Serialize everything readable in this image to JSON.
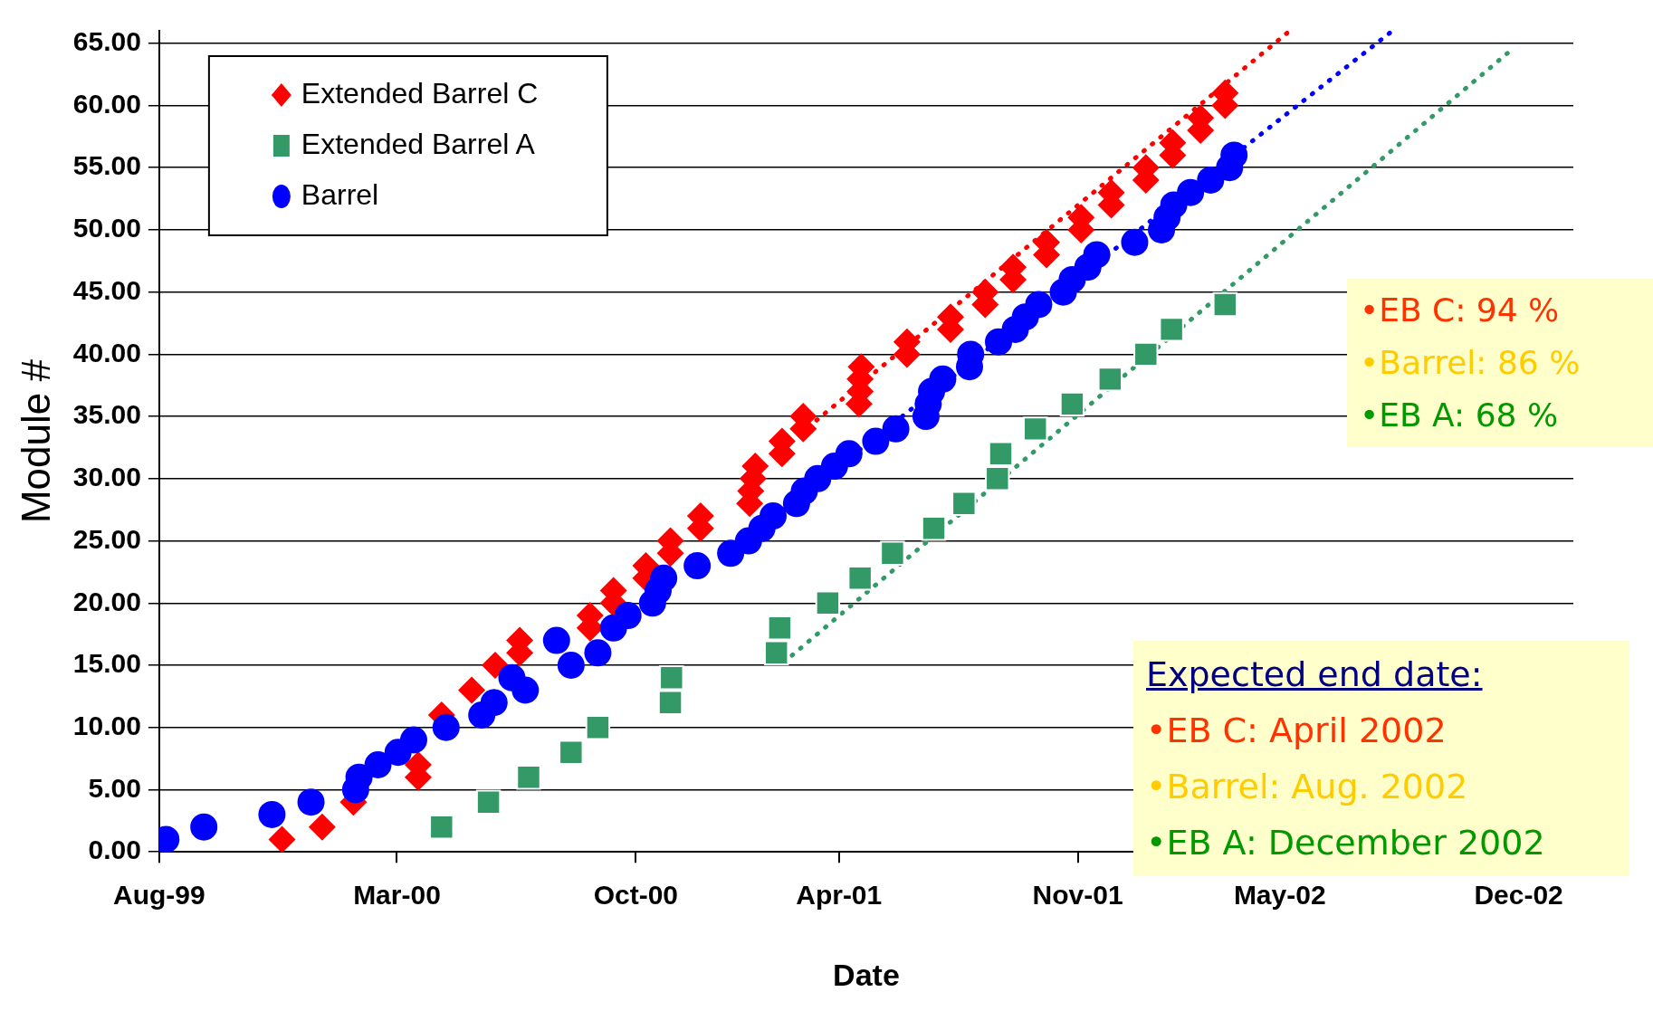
{
  "chart_data": {
    "type": "scatter",
    "xlabel": "Date",
    "ylabel": "Module #",
    "xlim": [
      "1999-08-01",
      "2003-01-19"
    ],
    "xticks": [
      {
        "value": "1999-08-01",
        "label": "Aug-99"
      },
      {
        "value": "2000-03-01",
        "label": "Mar-00"
      },
      {
        "value": "2000-10-01",
        "label": "Oct-00"
      },
      {
        "value": "2001-04-01",
        "label": "Apr-01"
      },
      {
        "value": "2001-11-01",
        "label": "Nov-01"
      },
      {
        "value": "2002-05-01",
        "label": "May-02"
      },
      {
        "value": "2002-12-01",
        "label": "Dec-02"
      }
    ],
    "ylim": [
      0,
      66
    ],
    "yticks": [
      {
        "value": 0,
        "label": "0.00"
      },
      {
        "value": 5,
        "label": "5.00"
      },
      {
        "value": 10,
        "label": "10.00"
      },
      {
        "value": 15,
        "label": "15.00"
      },
      {
        "value": 20,
        "label": "20.00"
      },
      {
        "value": 25,
        "label": "25.00"
      },
      {
        "value": 30,
        "label": "30.00"
      },
      {
        "value": 35,
        "label": "35.00"
      },
      {
        "value": 40,
        "label": "40.00"
      },
      {
        "value": 45,
        "label": "45.00"
      },
      {
        "value": 50,
        "label": "50.00"
      },
      {
        "value": 55,
        "label": "55.00"
      },
      {
        "value": 60,
        "label": "60.00"
      },
      {
        "value": 65,
        "label": "65.00"
      }
    ],
    "grid": "y",
    "legend": "top left",
    "annotations": [
      "•EB C: 94 %",
      "•Barrel: 86 %",
      "•EB A: 68 %",
      "Expected end date:",
      "•EB C: April 2002",
      "•Barrel: Aug. 2002",
      "•EB A: December 2002"
    ],
    "series": [
      {
        "name": "Extended Barrel C",
        "color": "#ff0000",
        "marker": "diamond",
        "x": [
          "1999-11-19",
          "1999-12-25",
          "2000-01-22",
          "2000-03-20",
          "2000-03-20",
          "2000-04-10",
          "2000-05-07",
          "2000-05-28",
          "2000-06-19",
          "2000-06-19",
          "2000-08-21",
          "2000-08-21",
          "2000-09-11",
          "2000-09-11",
          "2000-10-10",
          "2000-10-10",
          "2000-11-01",
          "2000-11-01",
          "2000-11-28",
          "2000-11-28",
          "2001-01-11",
          "2001-01-12",
          "2001-01-14",
          "2001-01-16",
          "2001-02-09",
          "2001-02-09",
          "2001-02-28",
          "2001-02-28",
          "2001-04-19",
          "2001-04-20",
          "2001-04-20",
          "2001-04-21",
          "2001-06-01",
          "2001-06-01",
          "2001-07-10",
          "2001-07-10",
          "2001-08-10",
          "2001-08-10",
          "2001-09-04",
          "2001-09-04",
          "2001-10-04",
          "2001-10-04",
          "2001-11-04",
          "2001-11-04",
          "2001-12-01",
          "2001-12-01",
          "2002-01-01",
          "2002-01-01",
          "2002-01-25",
          "2002-01-25",
          "2002-02-19",
          "2002-02-19",
          "2002-03-13",
          "2002-03-13"
        ],
        "values": [
          1,
          2,
          4,
          6,
          7,
          11,
          13,
          15,
          16,
          17,
          18,
          19,
          20,
          21,
          22,
          23,
          24,
          25,
          26,
          27,
          28,
          29,
          30,
          31,
          32,
          33,
          34,
          35,
          36,
          37,
          38,
          39,
          40,
          41,
          42,
          43,
          44,
          45,
          46,
          47,
          48,
          49,
          50,
          51,
          52,
          53,
          54,
          55,
          56,
          57,
          58,
          59,
          60,
          61
        ]
      },
      {
        "name": "Extended Barrel A",
        "color": "#339966",
        "marker": "square",
        "x": [
          "2000-04-10",
          "2000-05-22",
          "2000-06-27",
          "2000-08-04",
          "2000-08-28",
          "2000-11-01",
          "2000-11-02",
          "2001-02-04",
          "2001-02-07",
          "2001-03-22",
          "2001-04-20",
          "2001-05-19",
          "2001-06-25",
          "2001-07-22",
          "2001-08-21",
          "2001-08-24",
          "2001-09-24",
          "2001-10-27",
          "2001-11-30",
          "2002-01-01",
          "2002-01-24",
          "2002-03-13"
        ],
        "values": [
          2,
          4,
          6,
          8,
          10,
          12,
          14,
          16,
          18,
          20,
          22,
          24,
          26,
          28,
          30,
          32,
          34,
          36,
          38,
          40,
          42,
          44
        ]
      },
      {
        "name": "Barrel",
        "color": "#0000ff",
        "marker": "circle",
        "x": [
          "1999-08-07",
          "1999-09-10",
          "1999-11-10",
          "1999-12-15",
          "2000-01-24",
          "2000-01-27",
          "2000-02-13",
          "2000-03-02",
          "2000-03-16",
          "2000-04-14",
          "2000-05-16",
          "2000-05-27",
          "2000-06-24",
          "2000-06-12",
          "2000-08-04",
          "2000-08-28",
          "2000-07-22",
          "2000-09-11",
          "2000-09-24",
          "2000-10-16",
          "2000-10-21",
          "2000-10-26",
          "2000-11-25",
          "2000-12-25",
          "2001-01-10",
          "2001-01-22",
          "2001-02-01",
          "2001-02-22",
          "2001-03-01",
          "2001-03-13",
          "2001-03-28",
          "2001-04-10",
          "2001-05-04",
          "2001-05-22",
          "2001-06-18",
          "2001-06-20",
          "2001-06-23",
          "2001-07-03",
          "2001-07-27",
          "2001-07-28",
          "2001-08-22",
          "2001-09-06",
          "2001-09-15",
          "2001-09-27",
          "2001-10-19",
          "2001-10-27",
          "2001-11-10",
          "2001-11-18",
          "2001-12-22",
          "2002-01-15",
          "2002-01-20",
          "2002-01-26",
          "2002-02-10",
          "2002-02-28",
          "2002-03-17",
          "2002-03-21"
        ],
        "values": [
          1,
          2,
          3,
          4,
          5,
          6,
          7,
          8,
          9,
          10,
          11,
          12,
          13,
          14,
          15,
          16,
          17,
          18,
          19,
          20,
          21,
          22,
          23,
          24,
          25,
          26,
          27,
          28,
          29,
          30,
          31,
          32,
          33,
          34,
          35,
          36,
          37,
          38,
          39,
          40,
          41,
          42,
          43,
          44,
          45,
          46,
          47,
          48,
          49,
          50,
          51,
          52,
          53,
          54,
          55,
          56
        ]
      },
      {
        "type": "line",
        "color": "#ff0000",
        "marker": "none",
        "line_style": "dotted",
        "x": [
          "2001-03-12",
          "2002-05-10"
        ],
        "values": [
          34.7,
          66
        ]
      },
      {
        "type": "line",
        "color": "#0000ff",
        "marker": "none",
        "line_style": "dotted",
        "x": [
          "2001-01-10",
          "2002-08-10"
        ],
        "values": [
          25.3,
          66
        ]
      },
      {
        "type": "line",
        "color": "#339966",
        "marker": "none",
        "line_style": "dotted",
        "x": [
          "2001-02-18",
          "2002-11-25"
        ],
        "values": [
          15.8,
          64.5
        ]
      }
    ]
  }
}
